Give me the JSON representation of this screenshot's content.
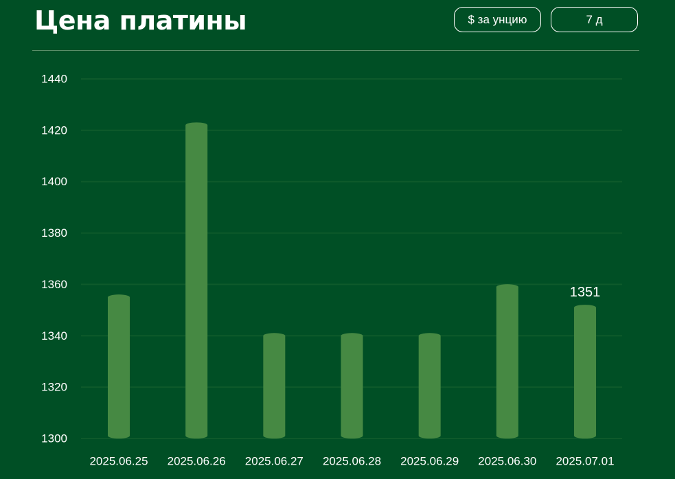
{
  "header": {
    "title": "Цена платины",
    "unit_button_label": "$ за унцию",
    "range_button_label": "7 д"
  },
  "colors": {
    "background": "#004f25",
    "bar": "#468943",
    "gridline": "#0e5a2b",
    "text": "#ffffff"
  },
  "chart_data": {
    "type": "bar",
    "title": "Цена платины",
    "xlabel": "",
    "ylabel": "",
    "categories": [
      "2025.06.25",
      "2025.06.26",
      "2025.06.27",
      "2025.06.28",
      "2025.06.29",
      "2025.06.30",
      "2025.07.01"
    ],
    "values": [
      1355,
      1422,
      1340,
      1340,
      1340,
      1359,
      1351
    ],
    "ylim": [
      1300,
      1440
    ],
    "yticks": [
      1300,
      1320,
      1340,
      1360,
      1380,
      1400,
      1420,
      1440
    ],
    "grid": true,
    "legend": "none",
    "annotations": [
      {
        "category": "2025.07.01",
        "text": "1351"
      }
    ]
  }
}
